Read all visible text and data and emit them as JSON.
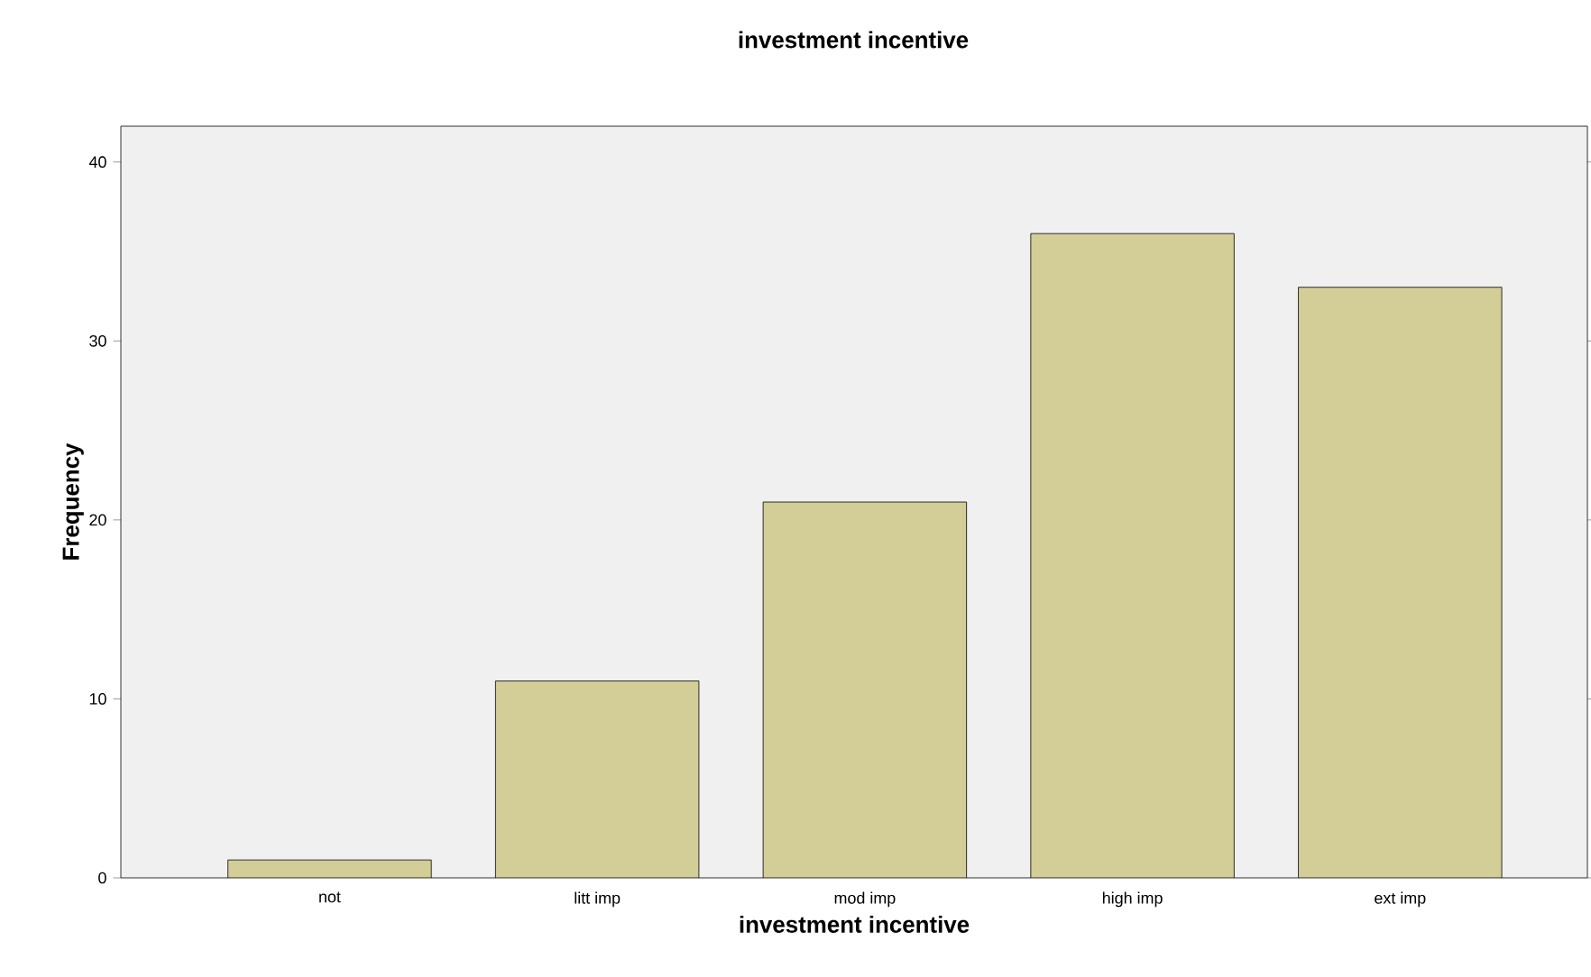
{
  "chart_data": {
    "type": "bar",
    "title": "investment incentive",
    "xlabel": "investment incentive",
    "ylabel": "Frequency",
    "categories": [
      "not",
      "litt imp",
      "mod imp",
      "high imp",
      "ext imp"
    ],
    "values": [
      1,
      11,
      21,
      36,
      33
    ],
    "color": "#d3ce97",
    "ylim": [
      0,
      42
    ],
    "yticks": [
      0,
      10,
      20,
      30,
      40
    ],
    "grid": false
  }
}
